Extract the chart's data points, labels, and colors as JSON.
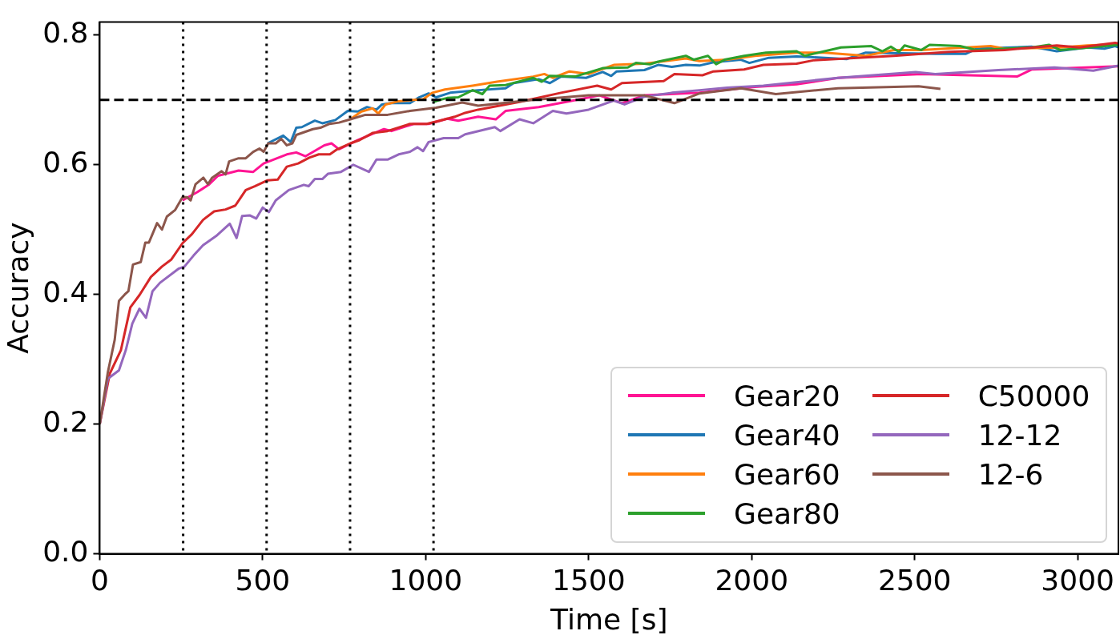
{
  "chart_data": {
    "type": "line",
    "xlabel": "Time [s]",
    "ylabel": "Accuracy",
    "xlim": [
      0,
      3125
    ],
    "ylim": [
      0,
      0.82
    ],
    "xticks": [
      0,
      500,
      1000,
      1500,
      2000,
      2500,
      3000
    ],
    "yticks": [
      {
        "value": 0,
        "label": "0.0"
      },
      {
        "value": 0.2,
        "label": "0.2"
      },
      {
        "value": 0.4,
        "label": "0.4"
      },
      {
        "value": 0.6,
        "label": "0.6"
      },
      {
        "value": 0.8,
        "label": "0.8"
      }
    ],
    "grid": false,
    "legend": "bottom right",
    "marker": "none",
    "line_style": "solid",
    "ref_lines": [
      {
        "axis": "y",
        "value": 0.7,
        "line_style": "dashed",
        "color": "#000000"
      },
      {
        "axis": "x",
        "value": 256,
        "line_style": "dotted",
        "color": "#000000"
      },
      {
        "axis": "x",
        "value": 512,
        "line_style": "dotted",
        "color": "#000000"
      },
      {
        "axis": "x",
        "value": 768,
        "line_style": "dotted",
        "color": "#000000"
      },
      {
        "axis": "x",
        "value": 1024,
        "line_style": "dotted",
        "color": "#000000"
      }
    ],
    "series": [
      {
        "name": "Gear20",
        "color": "#ff1493",
        "x": [
          254,
          300,
          334,
          363,
          426,
          471,
          503,
          574,
          603,
          631,
          689,
          711,
          734,
          792,
          872,
          895,
          963,
          1009,
          1066,
          1100,
          1161,
          1215,
          1245,
          1347,
          1431,
          1533,
          1602,
          1671,
          1840,
          2010,
          2138,
          2265,
          2520,
          2814,
          2860,
          3125
        ],
        "values": [
          0.545,
          0.558,
          0.569,
          0.583,
          0.591,
          0.589,
          0.602,
          0.616,
          0.619,
          0.613,
          0.63,
          0.633,
          0.624,
          0.638,
          0.655,
          0.652,
          0.663,
          0.663,
          0.671,
          0.668,
          0.674,
          0.67,
          0.683,
          0.689,
          0.697,
          0.707,
          0.695,
          0.707,
          0.711,
          0.72,
          0.724,
          0.734,
          0.74,
          0.736,
          0.747,
          0.752
        ]
      },
      {
        "name": "Gear40",
        "color": "#1f77b4",
        "x": [
          515,
          563,
          586,
          603,
          620,
          660,
          683,
          723,
          761,
          792,
          820,
          849,
          866,
          895,
          952,
          980,
          1009,
          1032,
          1075,
          1161,
          1245,
          1270,
          1347,
          1381,
          1415,
          1492,
          1543,
          1569,
          1586,
          1671,
          1713,
          1755,
          1798,
          1840,
          1883,
          1967,
          1993,
          2053,
          2138,
          2180,
          2291,
          2350,
          2563,
          2656,
          2690,
          2860,
          2936,
          3030,
          3082,
          3115,
          3125
        ],
        "values": [
          0.633,
          0.645,
          0.635,
          0.657,
          0.658,
          0.668,
          0.664,
          0.669,
          0.683,
          0.682,
          0.689,
          0.685,
          0.693,
          0.695,
          0.695,
          0.704,
          0.71,
          0.704,
          0.711,
          0.715,
          0.718,
          0.726,
          0.732,
          0.726,
          0.736,
          0.734,
          0.743,
          0.737,
          0.744,
          0.746,
          0.754,
          0.751,
          0.754,
          0.753,
          0.758,
          0.762,
          0.757,
          0.765,
          0.767,
          0.766,
          0.763,
          0.773,
          0.771,
          0.771,
          0.779,
          0.782,
          0.775,
          0.781,
          0.779,
          0.783,
          0.781
        ]
      },
      {
        "name": "Gear60",
        "color": "#ff7f0e",
        "x": [
          769,
          780,
          803,
          837,
          855,
          877,
          917,
          963,
          992,
          1020,
          1059,
          1144,
          1219,
          1330,
          1364,
          1390,
          1441,
          1500,
          1577,
          1671,
          1755,
          1798,
          1840,
          1925,
          2010,
          2138,
          2223,
          2350,
          2436,
          2520,
          2733,
          2776,
          2946,
          3030,
          3125
        ],
        "values": [
          0.67,
          0.674,
          0.682,
          0.687,
          0.679,
          0.693,
          0.698,
          0.7,
          0.701,
          0.711,
          0.716,
          0.722,
          0.728,
          0.736,
          0.74,
          0.734,
          0.744,
          0.74,
          0.754,
          0.756,
          0.761,
          0.764,
          0.76,
          0.762,
          0.768,
          0.773,
          0.773,
          0.768,
          0.777,
          0.777,
          0.783,
          0.779,
          0.781,
          0.784,
          0.786
        ]
      },
      {
        "name": "Gear80",
        "color": "#2ca02c",
        "x": [
          1024,
          1043,
          1066,
          1100,
          1144,
          1174,
          1196,
          1245,
          1330,
          1356,
          1381,
          1458,
          1543,
          1620,
          1645,
          1688,
          1713,
          1798,
          1823,
          1866,
          1891,
          1917,
          1977,
          2044,
          2138,
          2163,
          2274,
          2367,
          2401,
          2427,
          2452,
          2469,
          2520,
          2546,
          2639,
          2690,
          2860,
          2912,
          2946,
          3125
        ],
        "values": [
          0.697,
          0.7,
          0.703,
          0.704,
          0.715,
          0.709,
          0.722,
          0.723,
          0.734,
          0.728,
          0.737,
          0.736,
          0.749,
          0.75,
          0.757,
          0.755,
          0.759,
          0.768,
          0.762,
          0.768,
          0.755,
          0.762,
          0.768,
          0.773,
          0.775,
          0.768,
          0.781,
          0.783,
          0.775,
          0.782,
          0.774,
          0.784,
          0.777,
          0.785,
          0.783,
          0.777,
          0.781,
          0.785,
          0.777,
          0.785
        ]
      },
      {
        "name": "C50000",
        "color": "#d62728",
        "x": [
          0,
          31,
          65,
          94,
          122,
          157,
          191,
          220,
          254,
          283,
          317,
          351,
          386,
          416,
          448,
          477,
          515,
          546,
          574,
          609,
          643,
          672,
          706,
          729,
          769,
          797,
          837,
          883,
          952,
          1003,
          1043,
          1089,
          1121,
          1161,
          1288,
          1415,
          1526,
          1569,
          1602,
          1730,
          1763,
          1849,
          1883,
          1977,
          2036,
          2138,
          2189,
          2436,
          2605,
          2776,
          2936,
          3005,
          3115,
          3125
        ],
        "values": [
          0.2,
          0.278,
          0.314,
          0.38,
          0.399,
          0.427,
          0.443,
          0.454,
          0.479,
          0.493,
          0.515,
          0.528,
          0.531,
          0.537,
          0.561,
          0.567,
          0.576,
          0.577,
          0.597,
          0.602,
          0.611,
          0.616,
          0.616,
          0.624,
          0.633,
          0.638,
          0.649,
          0.652,
          0.663,
          0.663,
          0.668,
          0.674,
          0.68,
          0.685,
          0.697,
          0.711,
          0.722,
          0.716,
          0.726,
          0.729,
          0.74,
          0.738,
          0.744,
          0.747,
          0.754,
          0.756,
          0.761,
          0.768,
          0.774,
          0.777,
          0.784,
          0.781,
          0.788,
          0.787
        ]
      },
      {
        "name": "12-12",
        "color": "#9467bd",
        "x": [
          0,
          25,
          59,
          80,
          100,
          122,
          142,
          162,
          185,
          243,
          260,
          288,
          317,
          357,
          399,
          420,
          437,
          460,
          480,
          500,
          519,
          540,
          580,
          626,
          641,
          660,
          683,
          700,
          740,
          778,
          826,
          849,
          883,
          917,
          952,
          975,
          992,
          1009,
          1055,
          1100,
          1121,
          1212,
          1229,
          1288,
          1330,
          1390,
          1432,
          1500,
          1577,
          1610,
          1671,
          1755,
          1840,
          1925,
          2036,
          2265,
          2503,
          2563,
          2757,
          2929,
          3048,
          3125
        ],
        "values": [
          0.2,
          0.27,
          0.283,
          0.314,
          0.355,
          0.378,
          0.364,
          0.405,
          0.418,
          0.44,
          0.443,
          0.46,
          0.476,
          0.49,
          0.509,
          0.487,
          0.521,
          0.522,
          0.517,
          0.534,
          0.527,
          0.545,
          0.561,
          0.569,
          0.567,
          0.578,
          0.578,
          0.586,
          0.589,
          0.6,
          0.589,
          0.608,
          0.608,
          0.616,
          0.62,
          0.627,
          0.621,
          0.635,
          0.641,
          0.641,
          0.647,
          0.658,
          0.652,
          0.67,
          0.664,
          0.683,
          0.679,
          0.685,
          0.699,
          0.693,
          0.705,
          0.711,
          0.715,
          0.719,
          0.722,
          0.734,
          0.743,
          0.74,
          0.746,
          0.75,
          0.745,
          0.753
        ]
      },
      {
        "name": "12-6",
        "color": "#8c564b",
        "x": [
          0,
          25,
          46,
          59,
          77,
          88,
          102,
          126,
          140,
          151,
          176,
          191,
          206,
          231,
          254,
          268,
          279,
          294,
          318,
          332,
          345,
          374,
          386,
          397,
          426,
          448,
          471,
          490,
          503,
          517,
          540,
          557,
          574,
          591,
          603,
          654,
          677,
          705,
          734,
          769,
          815,
          883,
          952,
          1032,
          1112,
          1161,
          1329,
          1500,
          1671,
          1763,
          1840,
          1967,
          2074,
          2265,
          2512,
          2579
        ],
        "values": [
          0.2,
          0.28,
          0.33,
          0.39,
          0.4,
          0.405,
          0.446,
          0.45,
          0.48,
          0.48,
          0.51,
          0.5,
          0.52,
          0.53,
          0.55,
          0.55,
          0.545,
          0.57,
          0.58,
          0.57,
          0.58,
          0.59,
          0.585,
          0.605,
          0.61,
          0.61,
          0.62,
          0.625,
          0.62,
          0.633,
          0.633,
          0.64,
          0.63,
          0.633,
          0.646,
          0.655,
          0.657,
          0.663,
          0.665,
          0.67,
          0.677,
          0.677,
          0.683,
          0.688,
          0.696,
          0.691,
          0.7,
          0.707,
          0.707,
          0.695,
          0.71,
          0.718,
          0.709,
          0.718,
          0.721,
          0.717
        ]
      }
    ]
  }
}
